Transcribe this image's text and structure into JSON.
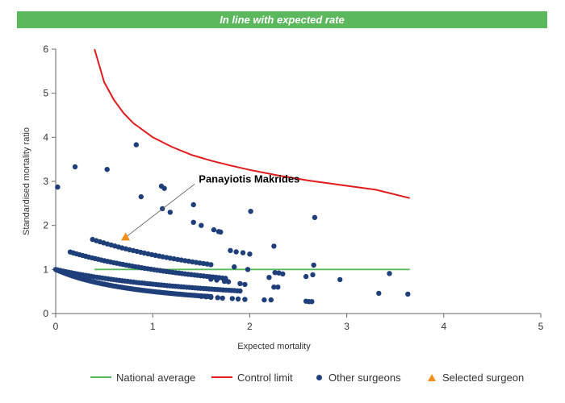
{
  "banner": {
    "text": "In line with expected rate",
    "color": "#5cb85c"
  },
  "chart_data": {
    "type": "scatter",
    "title": "In line with expected rate",
    "xlabel": "Expected mortality",
    "ylabel": "Standardised mortality ratio",
    "xlim": [
      0,
      5
    ],
    "ylim": [
      0,
      6
    ],
    "xticks": [
      0,
      1,
      2,
      3,
      4,
      5
    ],
    "yticks": [
      0,
      1,
      2,
      3,
      4,
      5,
      6
    ],
    "grid": false,
    "legend_position": "bottom",
    "national_average": {
      "name": "National average",
      "y": 1,
      "x_range": [
        0.4,
        3.65
      ],
      "color": "#5cb85c"
    },
    "control_limit": {
      "name": "Control limit",
      "color": "#e31a1c",
      "points": [
        [
          0.4,
          6.0
        ],
        [
          0.5,
          5.25
        ],
        [
          0.6,
          4.85
        ],
        [
          0.7,
          4.55
        ],
        [
          0.8,
          4.32
        ],
        [
          1.0,
          4.0
        ],
        [
          1.2,
          3.78
        ],
        [
          1.4,
          3.6
        ],
        [
          1.6,
          3.47
        ],
        [
          1.8,
          3.36
        ],
        [
          2.0,
          3.26
        ],
        [
          2.3,
          3.13
        ],
        [
          2.6,
          3.02
        ],
        [
          3.0,
          2.9
        ],
        [
          3.3,
          2.81
        ],
        [
          3.65,
          2.62
        ]
      ]
    },
    "bands": [
      {
        "k": 1,
        "x_start": 0,
        "x_end": 1.6,
        "steps": 75
      },
      {
        "k": 2,
        "x_start": 0.02,
        "x_end": 1.9,
        "steps": 65
      },
      {
        "k": 3,
        "x_start": 0.15,
        "x_end": 1.75,
        "steps": 50
      },
      {
        "k": 4,
        "x_start": 0.38,
        "x_end": 1.6,
        "steps": 32
      }
    ],
    "other_surgeons": {
      "name": "Other surgeons",
      "color": "#1f3f7a",
      "points": [
        [
          0.02,
          2.87
        ],
        [
          0.2,
          3.33
        ],
        [
          0.53,
          3.27
        ],
        [
          0.83,
          3.83
        ],
        [
          1.09,
          2.89
        ],
        [
          1.12,
          2.84
        ],
        [
          0.88,
          2.65
        ],
        [
          1.1,
          2.38
        ],
        [
          1.18,
          2.3
        ],
        [
          1.42,
          2.47
        ],
        [
          1.42,
          2.07
        ],
        [
          1.5,
          2.0
        ],
        [
          1.63,
          1.9
        ],
        [
          1.68,
          1.86
        ],
        [
          1.7,
          1.85
        ],
        [
          2.01,
          2.32
        ],
        [
          2.67,
          2.18
        ],
        [
          2.25,
          1.53
        ],
        [
          1.8,
          1.43
        ],
        [
          1.86,
          1.4
        ],
        [
          1.93,
          1.38
        ],
        [
          2.0,
          1.35
        ],
        [
          1.84,
          1.06
        ],
        [
          1.98,
          1.0
        ],
        [
          2.2,
          0.82
        ],
        [
          2.25,
          0.6
        ],
        [
          2.29,
          0.6
        ],
        [
          2.26,
          0.93
        ],
        [
          2.3,
          0.92
        ],
        [
          2.34,
          0.9
        ],
        [
          2.58,
          0.84
        ],
        [
          2.66,
          1.1
        ],
        [
          2.65,
          0.88
        ],
        [
          2.93,
          0.77
        ],
        [
          3.44,
          0.91
        ],
        [
          3.33,
          0.46
        ],
        [
          3.63,
          0.44
        ],
        [
          2.58,
          0.28
        ],
        [
          2.61,
          0.27
        ],
        [
          2.64,
          0.27
        ],
        [
          2.15,
          0.31
        ],
        [
          2.22,
          0.31
        ],
        [
          1.74,
          0.73
        ],
        [
          1.78,
          0.72
        ],
        [
          1.9,
          0.68
        ],
        [
          1.95,
          0.66
        ],
        [
          1.6,
          0.78
        ],
        [
          1.66,
          0.76
        ],
        [
          1.67,
          0.36
        ],
        [
          1.72,
          0.35
        ],
        [
          1.82,
          0.34
        ],
        [
          1.88,
          0.33
        ],
        [
          1.95,
          0.32
        ],
        [
          1.5,
          0.39
        ],
        [
          1.55,
          0.38
        ],
        [
          1.6,
          0.37
        ]
      ]
    },
    "selected_surgeon": {
      "name": "Selected surgeon",
      "x": 0.72,
      "y": 1.73,
      "color": "#f28e1c"
    },
    "annotation": {
      "text": "Panayiotis Makrides",
      "x": 1.45,
      "y": 3.05
    }
  },
  "legend": {
    "national_average": "National average",
    "control_limit": "Control limit",
    "other_surgeons": "Other surgeons",
    "selected_surgeon": "Selected surgeon"
  }
}
